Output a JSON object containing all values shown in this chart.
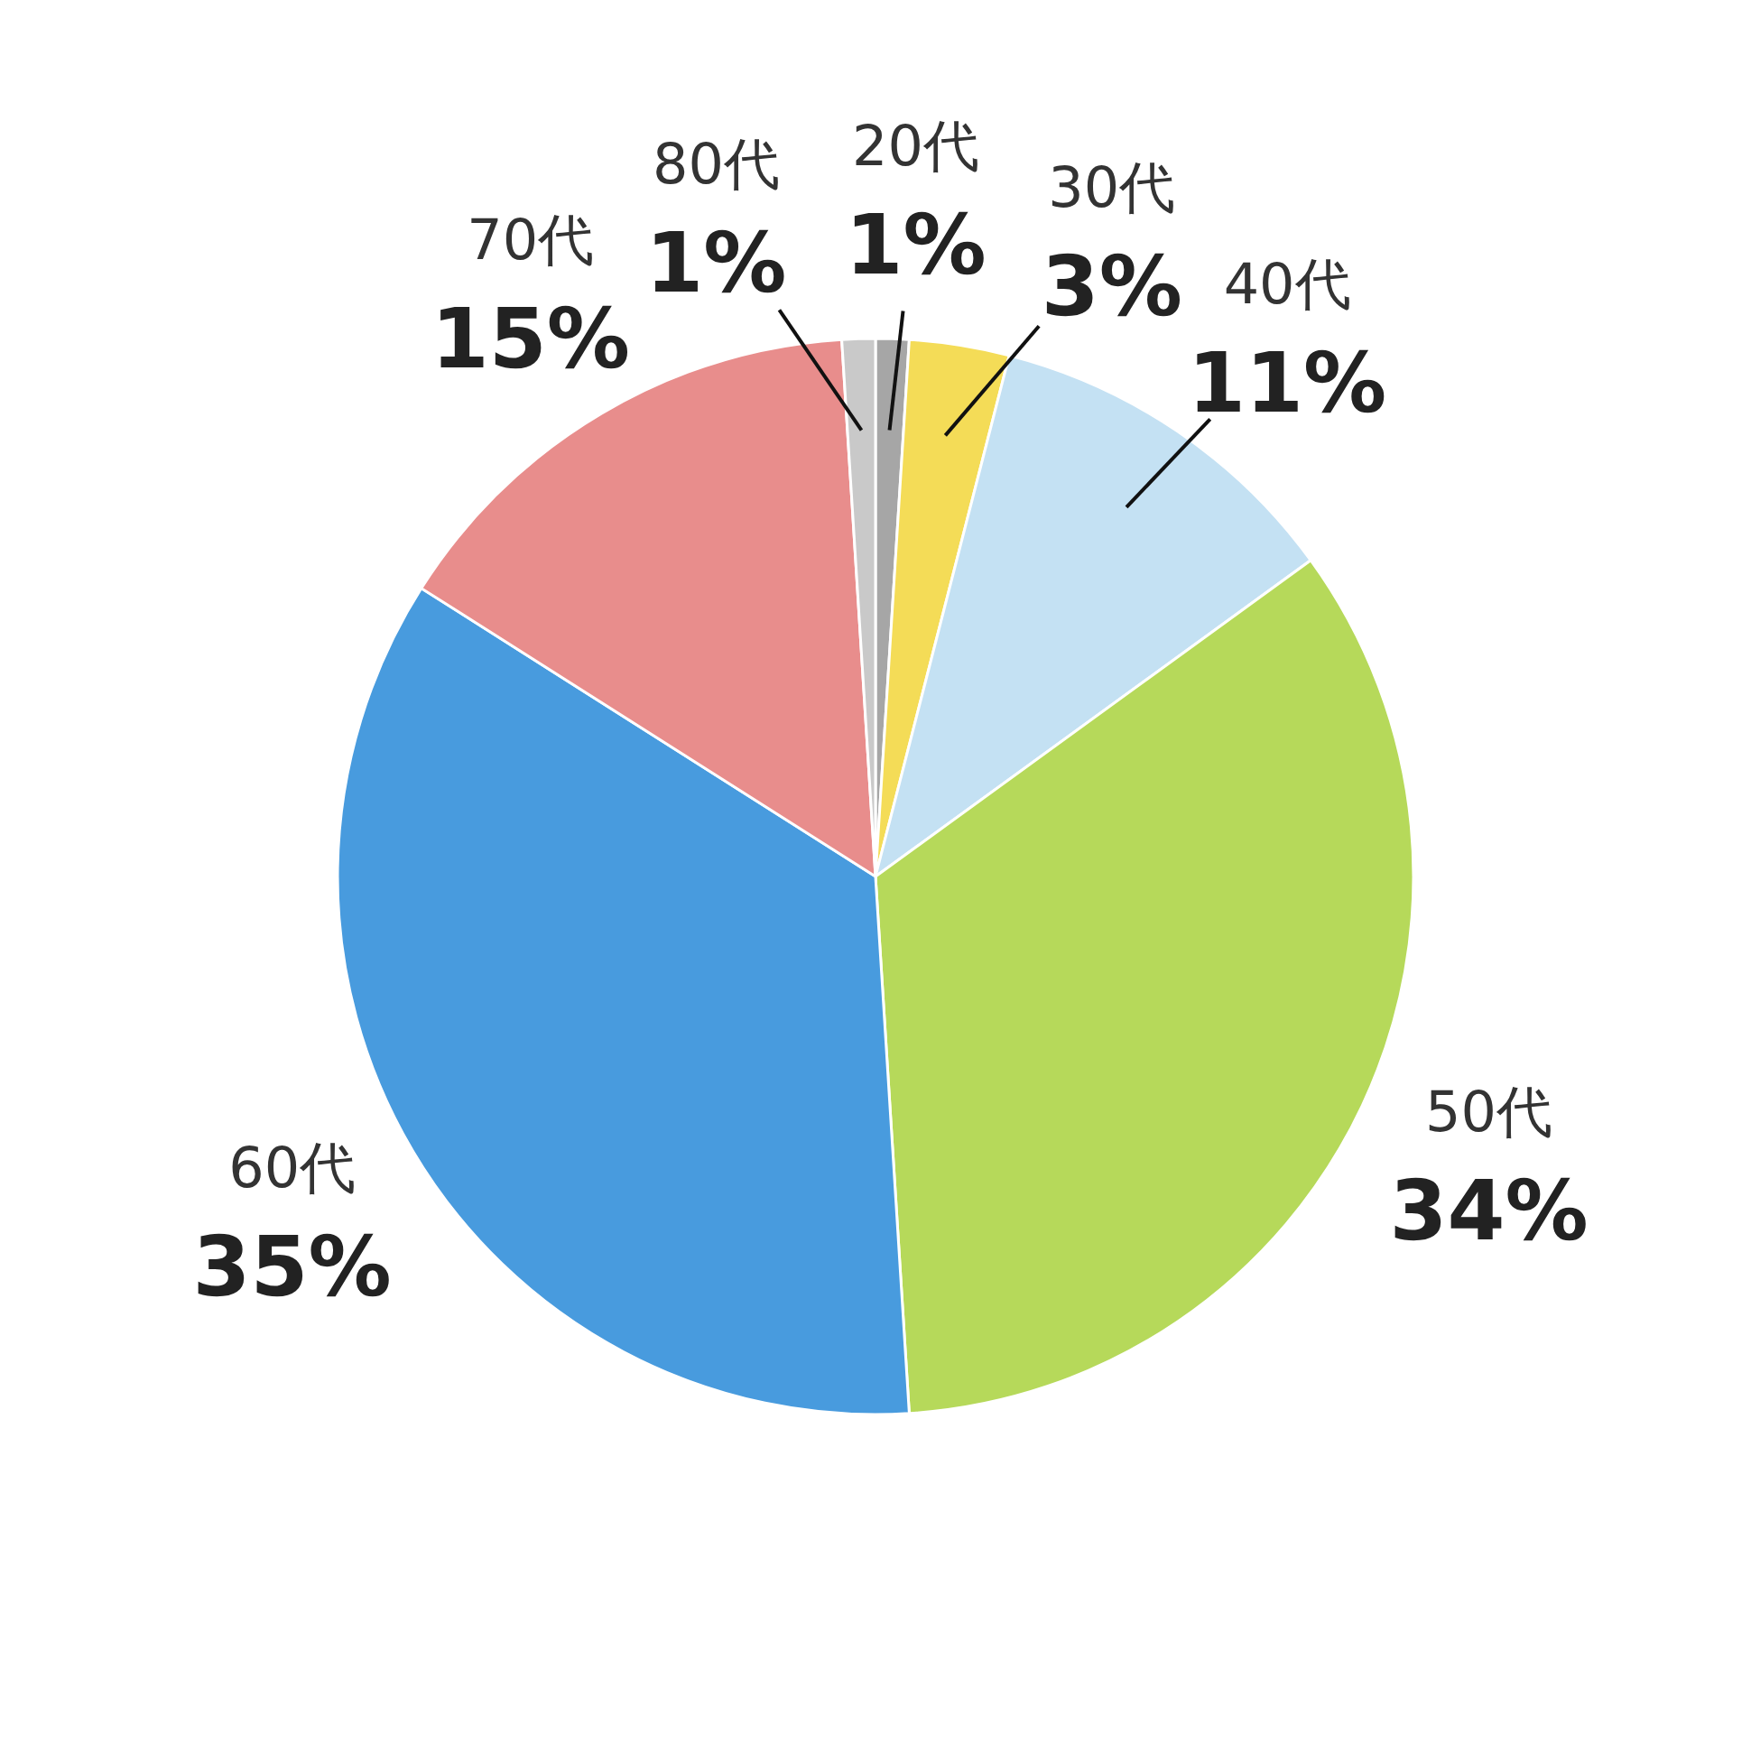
{
  "chart_data": {
    "type": "pie",
    "categories": [
      "20代",
      "30代",
      "40代",
      "50代",
      "60代",
      "70代",
      "80代"
    ],
    "values": [
      1,
      3,
      11,
      34,
      35,
      15,
      1
    ],
    "colors": [
      "#a6a6a6",
      "#f4dc57",
      "#c4e1f3",
      "#b6d95a",
      "#489bde",
      "#e88d8c",
      "#c9c9c9"
    ],
    "value_labels": [
      "1%",
      "3%",
      "11%",
      "34%",
      "35%",
      "15%",
      "1%"
    ]
  }
}
